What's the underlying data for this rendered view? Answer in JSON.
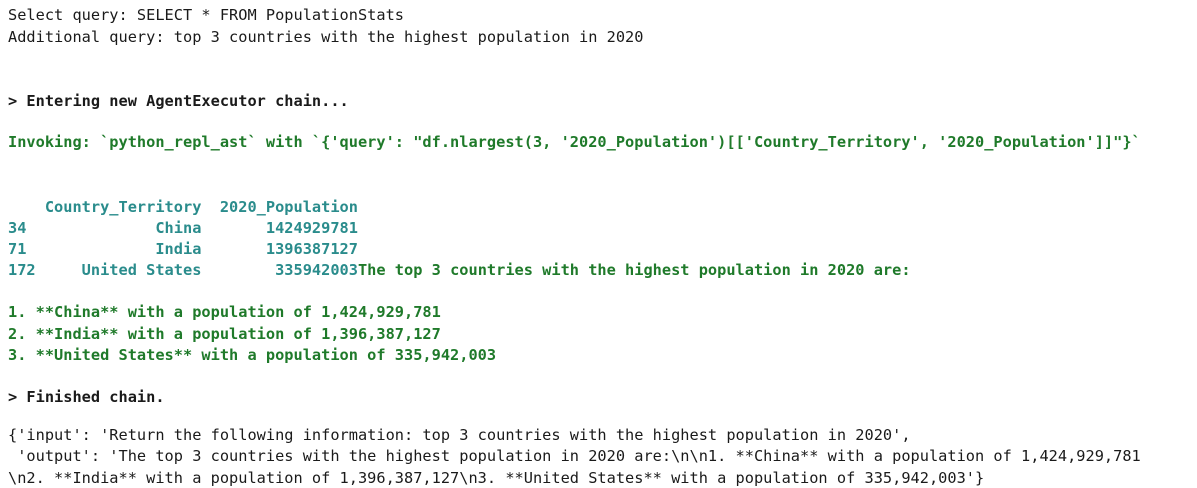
{
  "header": {
    "select_query": "Select query: SELECT * FROM PopulationStats",
    "additional_query": "Additional query: top 3 countries with the highest population in 2020"
  },
  "chain": {
    "entering": "> Entering new AgentExecutor chain...",
    "invoking": "Invoking: `python_repl_ast` with `{'query': \"df.nlargest(3, '2020_Population')[['Country_Territory', '2020_Population']]\"}`",
    "finished": "> Finished chain."
  },
  "table": {
    "header": "    Country_Territory  2020_Population",
    "rows": [
      "34              China       1424929781",
      "71              India       1396387127",
      "172     United States        335942003"
    ]
  },
  "answer": {
    "intro": "The top 3 countries with the highest population in 2020 are:",
    "items": [
      "1. **China** with a population of 1,424,929,781",
      "2. **India** with a population of 1,396,387,127",
      "3. **United States** with a population of 335,942,003"
    ]
  },
  "output_dict": {
    "line1": "{'input': 'Return the following information: top 3 countries with the highest population in 2020',",
    "line2": " 'output': 'The top 3 countries with the highest population in 2020 are:\\n\\n1. **China** with a population of 1,424,929,781",
    "line3": "\\n2. **India** with a population of 1,396,387,127\\n3. **United States** with a population of 335,942,003'}"
  },
  "colors": {
    "green": "#1f7a2a",
    "teal": "#2a8c8c",
    "text": "#1a1a1a"
  }
}
